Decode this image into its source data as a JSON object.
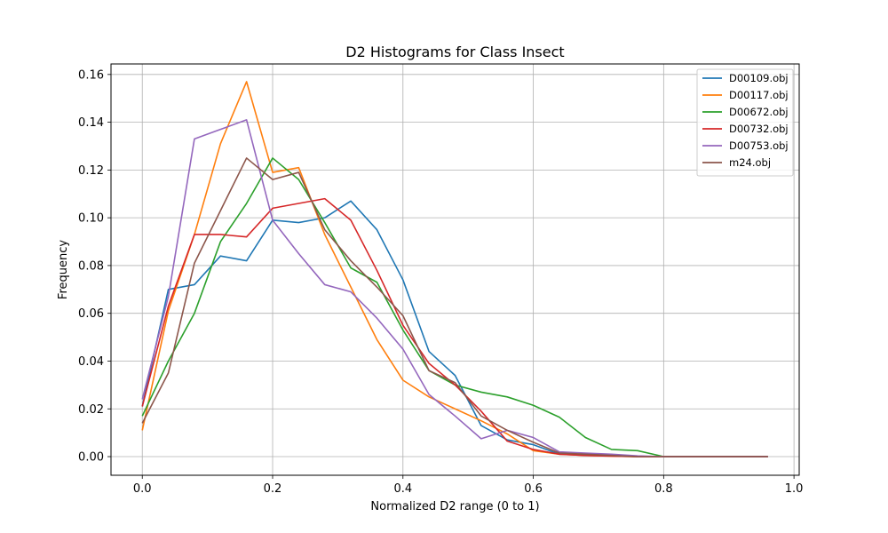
{
  "chart_data": {
    "type": "line",
    "title": "D2 Histograms for Class Insect",
    "xlabel": "Normalized D2 range (0 to 1)",
    "ylabel": "Frequency",
    "xlim": [
      -0.048,
      1.008
    ],
    "ylim": [
      -0.0078,
      0.1644
    ],
    "x_ticks": [
      0.0,
      0.2,
      0.4,
      0.6,
      0.8,
      1.0
    ],
    "x_tick_labels": [
      "0.0",
      "0.2",
      "0.4",
      "0.6",
      "0.8",
      "1.0"
    ],
    "y_ticks": [
      0.0,
      0.02,
      0.04,
      0.06,
      0.08,
      0.1,
      0.12,
      0.14,
      0.16
    ],
    "y_tick_labels": [
      "0.00",
      "0.02",
      "0.04",
      "0.06",
      "0.08",
      "0.10",
      "0.12",
      "0.14",
      "0.16"
    ],
    "grid": true,
    "legend_position": "top-right",
    "x": [
      0.0,
      0.04,
      0.08,
      0.12,
      0.16,
      0.2,
      0.24,
      0.28,
      0.32,
      0.36,
      0.4,
      0.44,
      0.48,
      0.52,
      0.56,
      0.6,
      0.64,
      0.68,
      0.72,
      0.76,
      0.8,
      0.84,
      0.88,
      0.92,
      0.96
    ],
    "series": [
      {
        "name": "D00109.obj",
        "color": "#1f77b4",
        "values": [
          0.021,
          0.07,
          0.072,
          0.084,
          0.082,
          0.099,
          0.098,
          0.1,
          0.107,
          0.095,
          0.074,
          0.044,
          0.034,
          0.013,
          0.007,
          0.005,
          0.001,
          0.001,
          0.0005,
          0.0,
          0.0,
          0.0,
          0.0,
          0.0,
          0.0
        ]
      },
      {
        "name": "D00117.obj",
        "color": "#ff7f0e",
        "values": [
          0.011,
          0.061,
          0.093,
          0.131,
          0.157,
          0.119,
          0.121,
          0.093,
          0.071,
          0.049,
          0.032,
          0.025,
          0.02,
          0.015,
          0.0095,
          0.0025,
          0.001,
          0.0005,
          0.0002,
          0.0,
          0.0,
          0.0,
          0.0,
          0.0,
          0.0
        ]
      },
      {
        "name": "D00672.obj",
        "color": "#2ca02c",
        "values": [
          0.017,
          0.04,
          0.06,
          0.09,
          0.106,
          0.125,
          0.116,
          0.098,
          0.079,
          0.073,
          0.053,
          0.036,
          0.03,
          0.027,
          0.025,
          0.0215,
          0.0165,
          0.008,
          0.003,
          0.0025,
          0.0,
          0.0,
          0.0,
          0.0,
          0.0
        ]
      },
      {
        "name": "D00732.obj",
        "color": "#d62728",
        "values": [
          0.021,
          0.063,
          0.093,
          0.093,
          0.092,
          0.104,
          0.106,
          0.108,
          0.099,
          0.078,
          0.055,
          0.039,
          0.03,
          0.019,
          0.0065,
          0.003,
          0.001,
          0.0005,
          0.0002,
          0.0,
          0.0,
          0.0,
          0.0,
          0.0,
          0.0
        ]
      },
      {
        "name": "D00753.obj",
        "color": "#9467bd",
        "values": [
          0.024,
          0.067,
          0.133,
          0.137,
          0.141,
          0.099,
          0.085,
          0.072,
          0.069,
          0.058,
          0.045,
          0.026,
          0.017,
          0.0075,
          0.011,
          0.008,
          0.002,
          0.0015,
          0.001,
          0.0003,
          0.0,
          0.0,
          0.0,
          0.0,
          0.0
        ]
      },
      {
        "name": "m24.obj",
        "color": "#8c564b",
        "values": [
          0.014,
          0.035,
          0.081,
          0.103,
          0.125,
          0.116,
          0.119,
          0.095,
          0.082,
          0.071,
          0.059,
          0.036,
          0.031,
          0.017,
          0.011,
          0.006,
          0.0015,
          0.001,
          0.0005,
          0.0,
          0.0,
          0.0,
          0.0,
          0.0,
          0.0
        ]
      }
    ]
  }
}
